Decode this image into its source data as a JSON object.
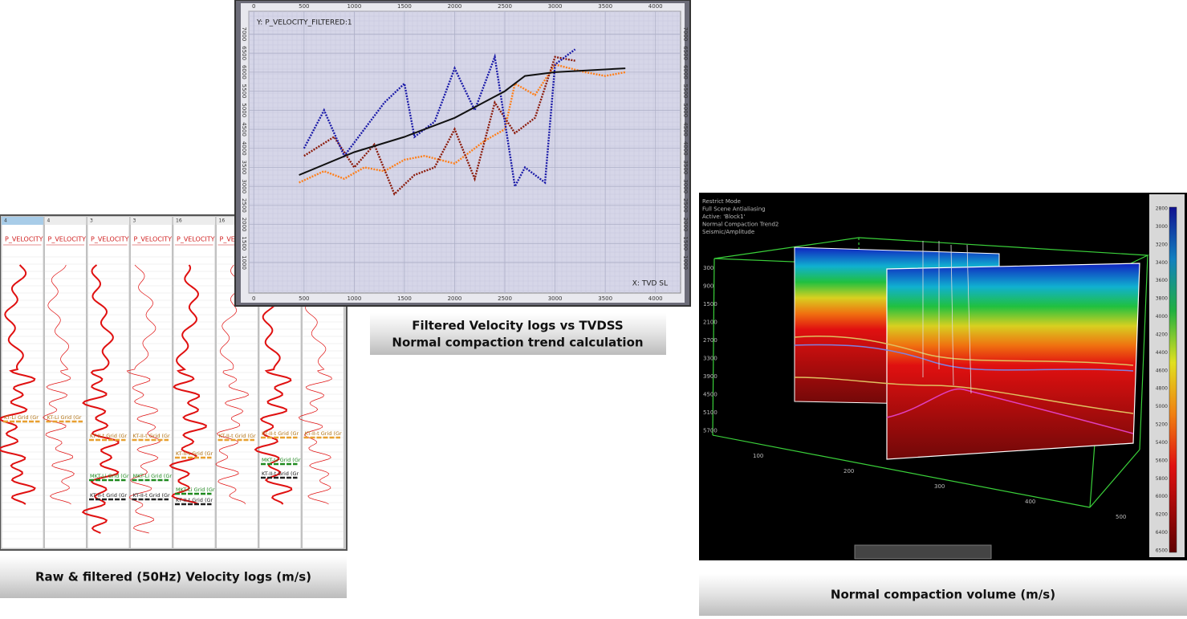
{
  "chart_data": {
    "type": "line",
    "title": "Y: P_VELOCITY_FILTERED:1",
    "x_label": "X: TVD SL",
    "xlim": [
      -50,
      4250
    ],
    "ylim": [
      200,
      7600
    ],
    "xticks": [
      0,
      500,
      1000,
      1500,
      2000,
      2500,
      3000,
      3500,
      4000
    ],
    "yticks": [
      1000,
      1500,
      2000,
      2500,
      3000,
      3500,
      4000,
      4500,
      5000,
      5500,
      6000,
      6500,
      7000
    ],
    "grid": true,
    "series": [
      {
        "color": "#ff7f1a",
        "x": [
          450,
          700,
          900,
          1100,
          1300,
          1500,
          1700,
          2000,
          2300,
          2500,
          2600,
          2800,
          3000,
          3300,
          3500,
          3700
        ],
        "values": [
          3100,
          3400,
          3200,
          3500,
          3400,
          3700,
          3800,
          3600,
          4200,
          4500,
          5700,
          5400,
          6200,
          6000,
          5900,
          6000
        ]
      },
      {
        "color": "#8b1a0a",
        "x": [
          500,
          800,
          1000,
          1200,
          1400,
          1600,
          1800,
          2000,
          2200,
          2400,
          2600,
          2800,
          3000,
          3200
        ],
        "values": [
          3800,
          4300,
          3500,
          4100,
          2800,
          3300,
          3500,
          4500,
          3200,
          5200,
          4400,
          4800,
          6400,
          6300
        ]
      },
      {
        "color": "#1a1aa8",
        "x": [
          500,
          700,
          900,
          1100,
          1300,
          1500,
          1600,
          1800,
          2000,
          2200,
          2400,
          2600,
          2700,
          2900,
          3000,
          3200
        ],
        "values": [
          4000,
          5000,
          3800,
          4500,
          5200,
          5700,
          4300,
          4700,
          6100,
          5000,
          6400,
          3000,
          3500,
          3100,
          6200,
          6600
        ]
      },
      {
        "color": "#111111",
        "x": [
          450,
          1000,
          1500,
          2000,
          2500,
          2700,
          3000,
          3700
        ],
        "values": [
          3300,
          3900,
          4300,
          4800,
          5500,
          5900,
          6000,
          6100
        ]
      }
    ]
  },
  "captions": {
    "logs": "Raw & filtered (50Hz) Velocity logs (m/s)",
    "crossplot": [
      "Filtered Velocity logs vs TVDSS",
      "Normal compaction trend calculation"
    ],
    "volume": "Normal compaction volume (m/s)"
  },
  "well_logs": {
    "tracks": [
      {
        "number": "4",
        "curve": "P_VELOCITY"
      },
      {
        "number": "4",
        "curve": "P_VELOCITY"
      },
      {
        "number": "3",
        "curve": "P_VELOCITY"
      },
      {
        "number": "3",
        "curve": "P_VELOCITY"
      },
      {
        "number": "16",
        "curve": "P_VELOCITY"
      },
      {
        "number": "16",
        "curve": "P_VELOCITY"
      }
    ],
    "markers": [
      {
        "track": 0,
        "label": "KT-Li Grid (Gr",
        "color": "#e8a030"
      },
      {
        "track": 1,
        "label": "KT-Li Grid (Gr",
        "color": "#e8a030"
      },
      {
        "track": 2,
        "label": "KT-II-t Grid (Gr",
        "color": "#e8a030"
      },
      {
        "track": 2,
        "label": "MKT-Li Grid (Gr",
        "color": "#1e8a1e"
      },
      {
        "track": 2,
        "label": "KT-II-t Grid (Gr",
        "color": "#222222"
      },
      {
        "track": 3,
        "label": "KT-II-t Grid (Gr",
        "color": "#e8a030"
      },
      {
        "track": 3,
        "label": "MKT-Li Grid (Gr",
        "color": "#1e8a1e"
      },
      {
        "track": 3,
        "label": "KT-II-t Grid (Gr",
        "color": "#222222"
      },
      {
        "track": 4,
        "label": "KT-II-t Grid (Gr",
        "color": "#e8a030"
      },
      {
        "track": 4,
        "label": "MKT-Li Grid (Gr",
        "color": "#1e8a1e"
      },
      {
        "track": 4,
        "label": "KT-II-t Grid (Gr",
        "color": "#222222"
      },
      {
        "track": 5,
        "label": "KT-II-t Grid (Gr",
        "color": "#e8a030"
      },
      {
        "track": 6,
        "label": "KT-II-t Grid (Gr",
        "color": "#e8a030"
      },
      {
        "track": 6,
        "label": "MKT-Li Grid (Gr",
        "color": "#1e8a1e"
      },
      {
        "track": 6,
        "label": "KT-II-t Grid (Gr",
        "color": "#222222"
      },
      {
        "track": 7,
        "label": "KT-II-t Grid (Gr",
        "color": "#e8a030"
      }
    ]
  },
  "volume": {
    "info": [
      "Restrict Mode",
      "Full Scene Antialiasing",
      "Active: 'Block1'",
      "Normal Compaction Trend2",
      "Seismic/Amplitude"
    ],
    "depth_labels": [
      "300",
      "900",
      "1500",
      "2100",
      "2700",
      "3300",
      "3900",
      "4500",
      "5100",
      "5700"
    ],
    "inline_labels": [
      "100",
      "200",
      "300",
      "400",
      "500"
    ],
    "colorbar_labels": [
      "2800",
      "3000",
      "3200",
      "3400",
      "3600",
      "3800",
      "4000",
      "4200",
      "4400",
      "4600",
      "4800",
      "5000",
      "5200",
      "5400",
      "5600",
      "5800",
      "6000",
      "6200",
      "6400",
      "6500"
    ]
  }
}
